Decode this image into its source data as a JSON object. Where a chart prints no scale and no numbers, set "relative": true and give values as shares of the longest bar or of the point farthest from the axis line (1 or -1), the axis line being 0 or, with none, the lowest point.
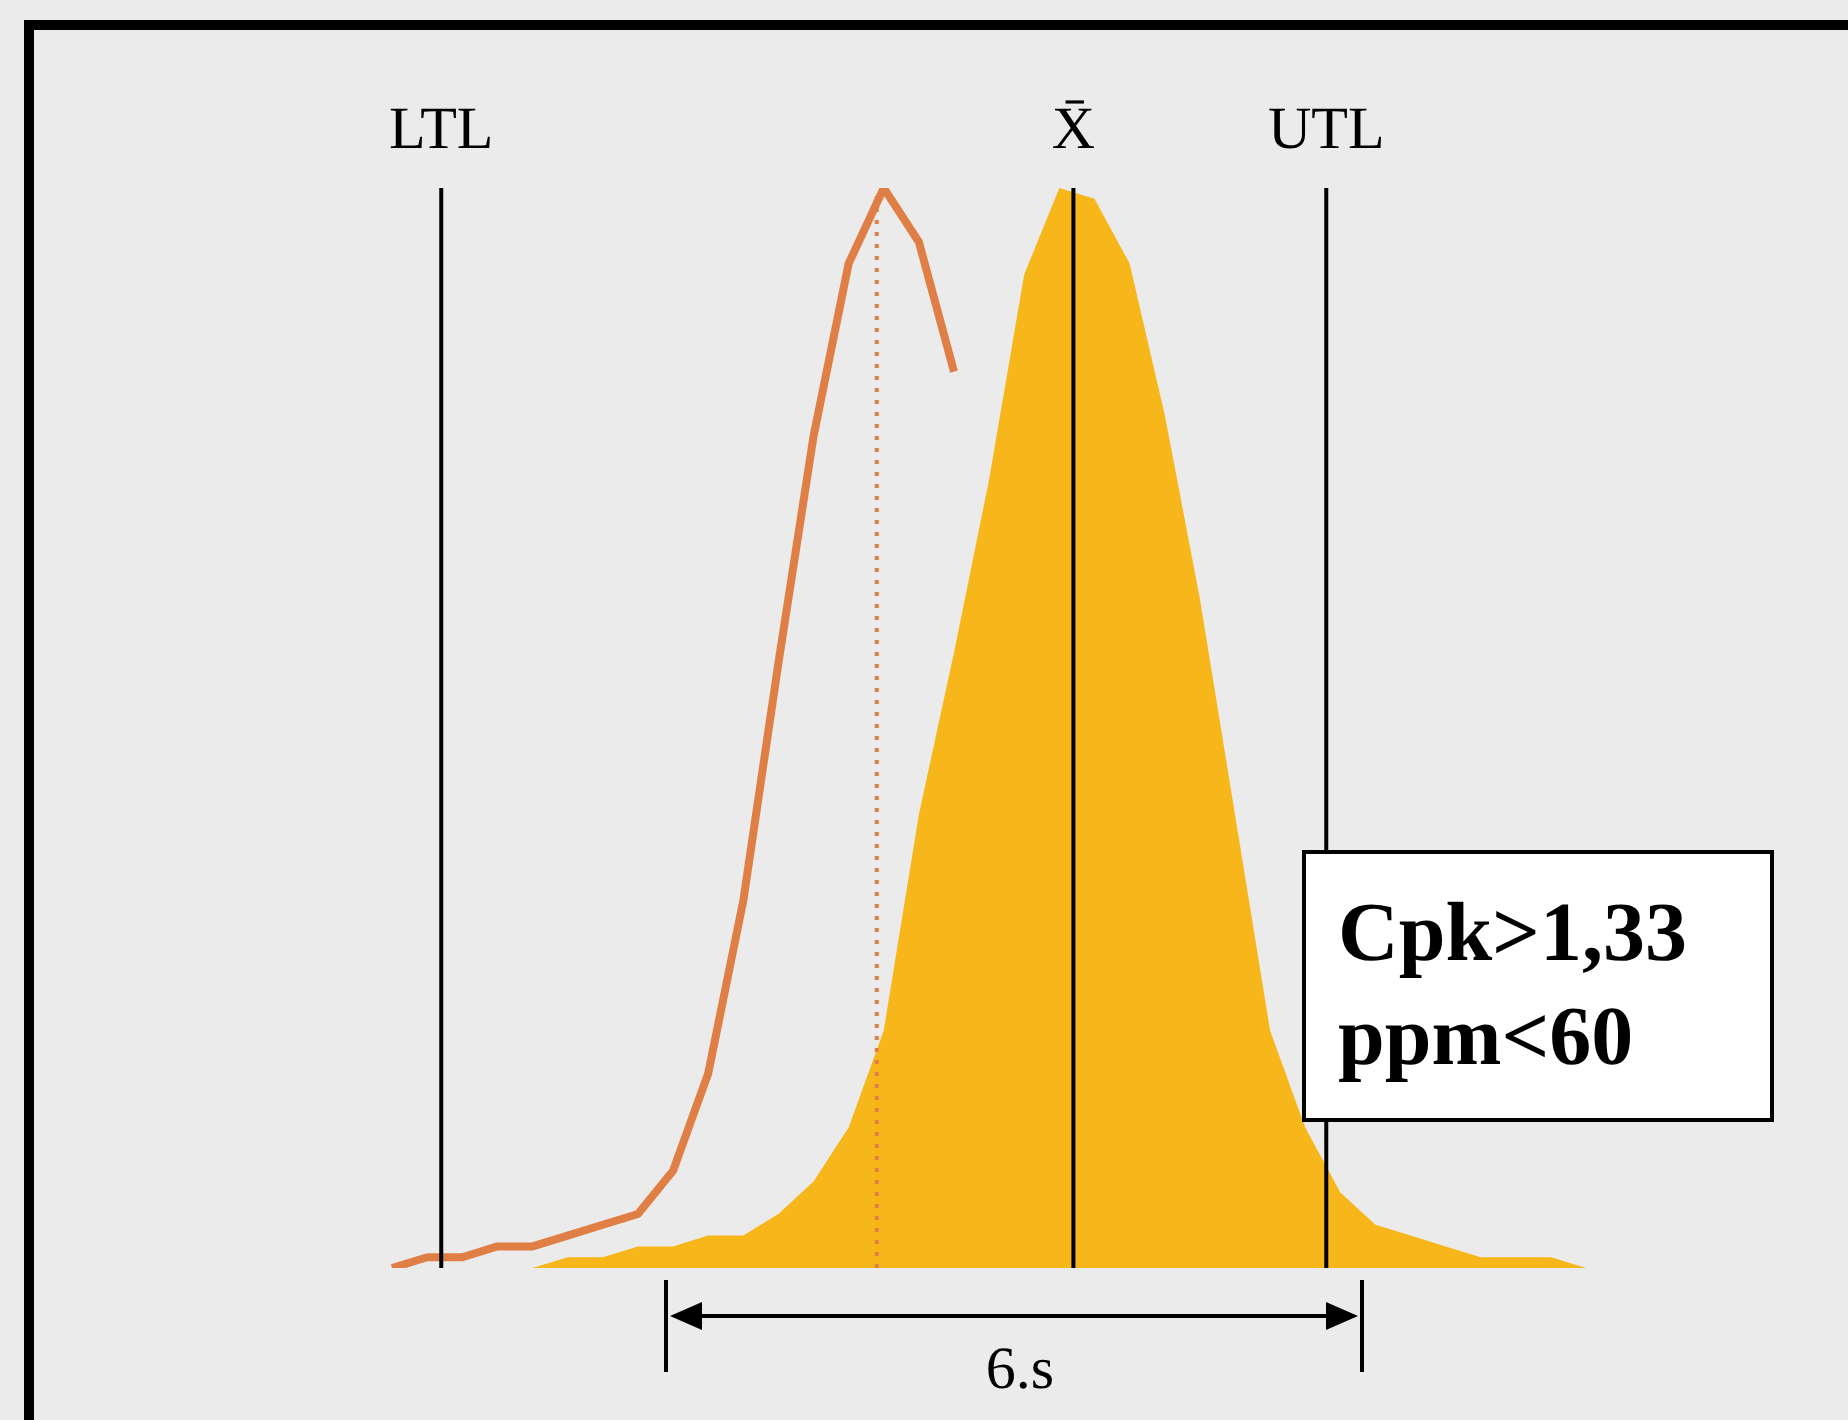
{
  "chart_data": {
    "type": "area",
    "relative": true,
    "categories": [
      null,
      null,
      null,
      null,
      null,
      null,
      null,
      null,
      null,
      null,
      null,
      null,
      null,
      null,
      null,
      null,
      null,
      null,
      null,
      null,
      null,
      null,
      null,
      null,
      null,
      null,
      null,
      null,
      null,
      null,
      null,
      null,
      null,
      null,
      null,
      null,
      null,
      null,
      null,
      null,
      null,
      null,
      null,
      null,
      null,
      null,
      null,
      null,
      null,
      null,
      null
    ],
    "series": [
      {
        "type": "line",
        "color": "#e07f45",
        "values": [
          null,
          null,
          null,
          null,
          null,
          null,
          null,
          null,
          null,
          0.0,
          0.01,
          0.01,
          0.02,
          0.02,
          0.03,
          0.04,
          0.05,
          0.09,
          0.18,
          0.34,
          0.56,
          0.77,
          0.93,
          1.0,
          0.95,
          0.83,
          null,
          null,
          null,
          null,
          null,
          null,
          null,
          null,
          null,
          null,
          null,
          null,
          null,
          null,
          null,
          null,
          null,
          null,
          null,
          null,
          null,
          null,
          null,
          null,
          null
        ]
      },
      {
        "color": "#f7b619",
        "values": [
          null,
          null,
          null,
          null,
          null,
          null,
          null,
          null,
          null,
          null,
          null,
          null,
          null,
          0.0,
          0.01,
          0.01,
          0.02,
          0.02,
          0.03,
          0.03,
          0.05,
          0.08,
          0.13,
          0.22,
          0.42,
          0.57,
          0.73,
          0.92,
          1.0,
          0.99,
          0.93,
          0.79,
          0.62,
          0.42,
          0.22,
          0.13,
          0.07,
          0.04,
          0.03,
          0.02,
          0.01,
          0.01,
          0.01,
          0.0,
          0.0,
          null,
          null,
          null,
          null,
          null,
          null
        ]
      }
    ],
    "annotations": [
      "LTL",
      "X̄",
      "UTL",
      "Cpk>1,33",
      "ppm<60",
      "6.s"
    ]
  }
}
